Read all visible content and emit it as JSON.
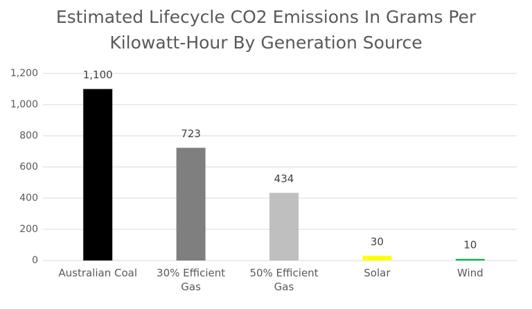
{
  "chart_data": {
    "type": "bar",
    "title": "Estimated Lifecycle CO2 Emissions In Grams Per Kilowatt-Hour By Generation Source",
    "categories": [
      "Australian Coal",
      "30% Efficient Gas",
      "50% Efficient Gas",
      "Solar",
      "Wind"
    ],
    "values": [
      1100,
      723,
      434,
      30,
      10
    ],
    "value_labels": [
      "1,100",
      "723",
      "434",
      "30",
      "10"
    ],
    "colors": [
      "#000000",
      "#7f7f7f",
      "#bfbfbf",
      "#ffff00",
      "#00b050"
    ],
    "ylim": [
      0,
      1200
    ],
    "yticks": [
      0,
      200,
      400,
      600,
      800,
      {
        "value": 1000,
        "label": "1,000"
      },
      {
        "value": 1200,
        "label": "1,200"
      }
    ],
    "grid": true
  }
}
